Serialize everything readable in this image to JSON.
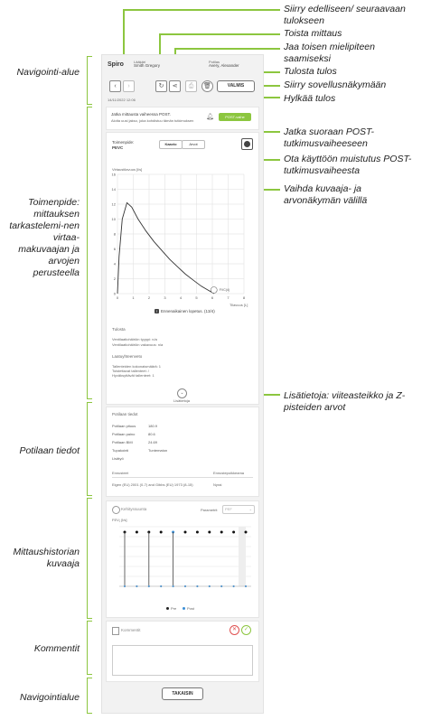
{
  "annotations": {
    "prev_next": "Siirry edelliseen/ seuraavaan tulokseen",
    "repeat": "Toista mittaus",
    "share": "Jaa toisen mielipiteen saamiseksi",
    "print": "Tulosta tulos",
    "app_view": "Siirry sovellusnäkymään",
    "reject": "Hylkää tulos",
    "go_post": "Jatka suoraan POST-tutkimusvaiheeseen",
    "post_reminder": "Ota käyttöön muistutus POST-tutkimusvaiheesta",
    "toggle_view": "Vaihda kuvaaja- ja arvonäkymän välillä",
    "more_info": "Lisätietoja: viiteasteikko ja Z-pisteiden arvot",
    "nav_area": "Navigointi-alue",
    "procedure": "Toimenpide: mittauksen tarkastelemi-nen virtaa-makuvaajan ja arvojen perusteella",
    "patient_info": "Potilaan tiedot",
    "history_chart": "Mittaushistorian kuvaaja",
    "comments": "Kommentit",
    "nav_area_bottom": "Navigointialue"
  },
  "header": {
    "app": "Spiro",
    "operator_label": "Lääkäri",
    "operator": "Smith Gregory",
    "patient_label": "Potilas",
    "patient": "Avery, Alexander",
    "date": "14/11/2022 12:06",
    "valmis": "VALMIS"
  },
  "post": {
    "title": "Jatka mittausta vaiheessa POST.",
    "subtitle": "Aloita uusi jakso, joka kohdistuu tämän tutkimuksen",
    "button": "POST-vaihe"
  },
  "measure": {
    "label": "Toimenpide:",
    "value": "PEVC",
    "tab_graph": "Kaavio",
    "tab_values": "Arvot",
    "ylabel": "Virtaustilavuus [l/s]",
    "xlabel": "Tilavuus [L]",
    "end_label": "Ennenaikainen lopetus. (13/4)",
    "marker": "FVC(4)"
  },
  "chart_data": {
    "type": "line",
    "xlabel": "Tilavuus [L]",
    "ylabel": "Virtaustilavuus [l/s]",
    "xlim": [
      0,
      8
    ],
    "ylim": [
      0,
      16
    ],
    "xticks": [
      "0",
      "1",
      "2",
      "3",
      "4",
      "5",
      "6",
      "7",
      "8"
    ],
    "yticks": [
      "0",
      "2",
      "4",
      "6",
      "8",
      "10",
      "12",
      "14",
      "16"
    ],
    "x": [
      0,
      0.1,
      0.3,
      0.6,
      0.9,
      1.3,
      1.8,
      2.3,
      2.8,
      3.3,
      3.8,
      4.3,
      4.8,
      5.3,
      5.7,
      6.0,
      6.1
    ],
    "y": [
      0,
      5,
      10,
      12.2,
      11.6,
      10.0,
      8.4,
      7.0,
      5.8,
      4.6,
      3.6,
      2.6,
      1.8,
      1.0,
      0.5,
      0.15,
      0
    ]
  },
  "results": {
    "title": "Tulosta",
    "line1": "Ventilaatiohäiriön tyyppi: n/a",
    "line2": "Ventilaatiohäiriön vakavuus: n/a",
    "quality_title": "Laatuyhteenveto",
    "q1": "Tallenteiden kokonaismäärä: 1",
    "q2": "Toistettavat tallenteet: /",
    "q3": "Hyväksyttävät tallenteet: 1",
    "more": "Lisätietoja"
  },
  "patient": {
    "title": "Potilaan tiedot",
    "rows": [
      {
        "k": "Potilaan pituus",
        "v": "180.9"
      },
      {
        "k": "Potilaan paino",
        "v": "80.6"
      },
      {
        "k": "Potilaan BMI",
        "v": "24.69"
      },
      {
        "k": "Tupakointi",
        "v": "Tuntematon"
      },
      {
        "k": "Lisätyö",
        "v": ""
      }
    ],
    "col1": "Ennusteet",
    "col2": "Ennustepoikkeama",
    "ref": "Eigen (EU) 2001 (0-7) and Gibbs (EU) 1973 (8-15)",
    "ref_val": "Nyrai"
  },
  "history": {
    "title": "Kehityssuunta",
    "param_label": "Parametrit",
    "param_value": "PEF",
    "unit": "FEV₁ [l/s]",
    "legend_pre": "Pre",
    "legend_post": "Post"
  },
  "comments": {
    "label": "Kommentit"
  },
  "footer": {
    "back": "TAKAISIN"
  }
}
